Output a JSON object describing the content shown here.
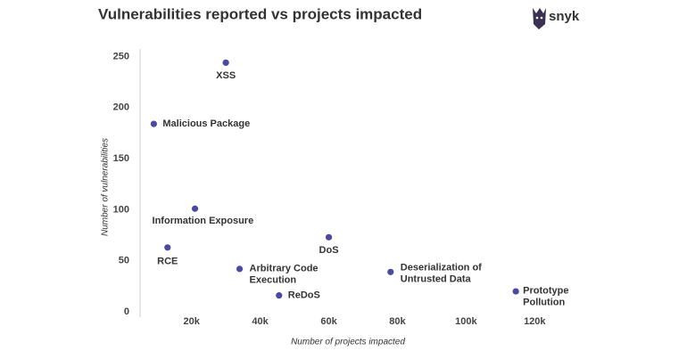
{
  "logo": "snyk",
  "chart_data": {
    "type": "scatter",
    "title": "Vulnerabilities reported vs projects impacted",
    "xlabel": "Number of projects impacted",
    "ylabel": "Number of vulnerabilities",
    "series": [
      {
        "color": "#4b4aa3",
        "x": [
          30000,
          9000,
          21000,
          13000,
          34000,
          45500,
          60000,
          78000,
          114500
        ],
        "values": [
          244,
          184,
          101,
          63,
          42,
          16,
          73,
          39,
          20
        ],
        "point_labels": [
          [
            "XSS"
          ],
          [
            "Malicious Package"
          ],
          [
            "Information Exposure"
          ],
          [
            "RCE"
          ],
          [
            "Arbitrary Code",
            "Execution"
          ],
          [
            "ReDoS"
          ],
          [
            "DoS"
          ],
          [
            "Deserialization of",
            "Untrusted Data"
          ],
          [
            "Prototype",
            "Pollution"
          ]
        ]
      }
    ],
    "xlim": [
      5000,
      135000
    ],
    "ylim": [
      0,
      260
    ],
    "xticks": [
      {
        "value": 20000,
        "label": "20k"
      },
      {
        "value": 40000,
        "label": "40k"
      },
      {
        "value": 60000,
        "label": "60k"
      },
      {
        "value": 80000,
        "label": "80k"
      },
      {
        "value": 100000,
        "label": "100k"
      },
      {
        "value": 120000,
        "label": "120k"
      }
    ],
    "yticks": [
      0,
      50,
      100,
      150,
      200,
      250
    ],
    "grid": false
  }
}
